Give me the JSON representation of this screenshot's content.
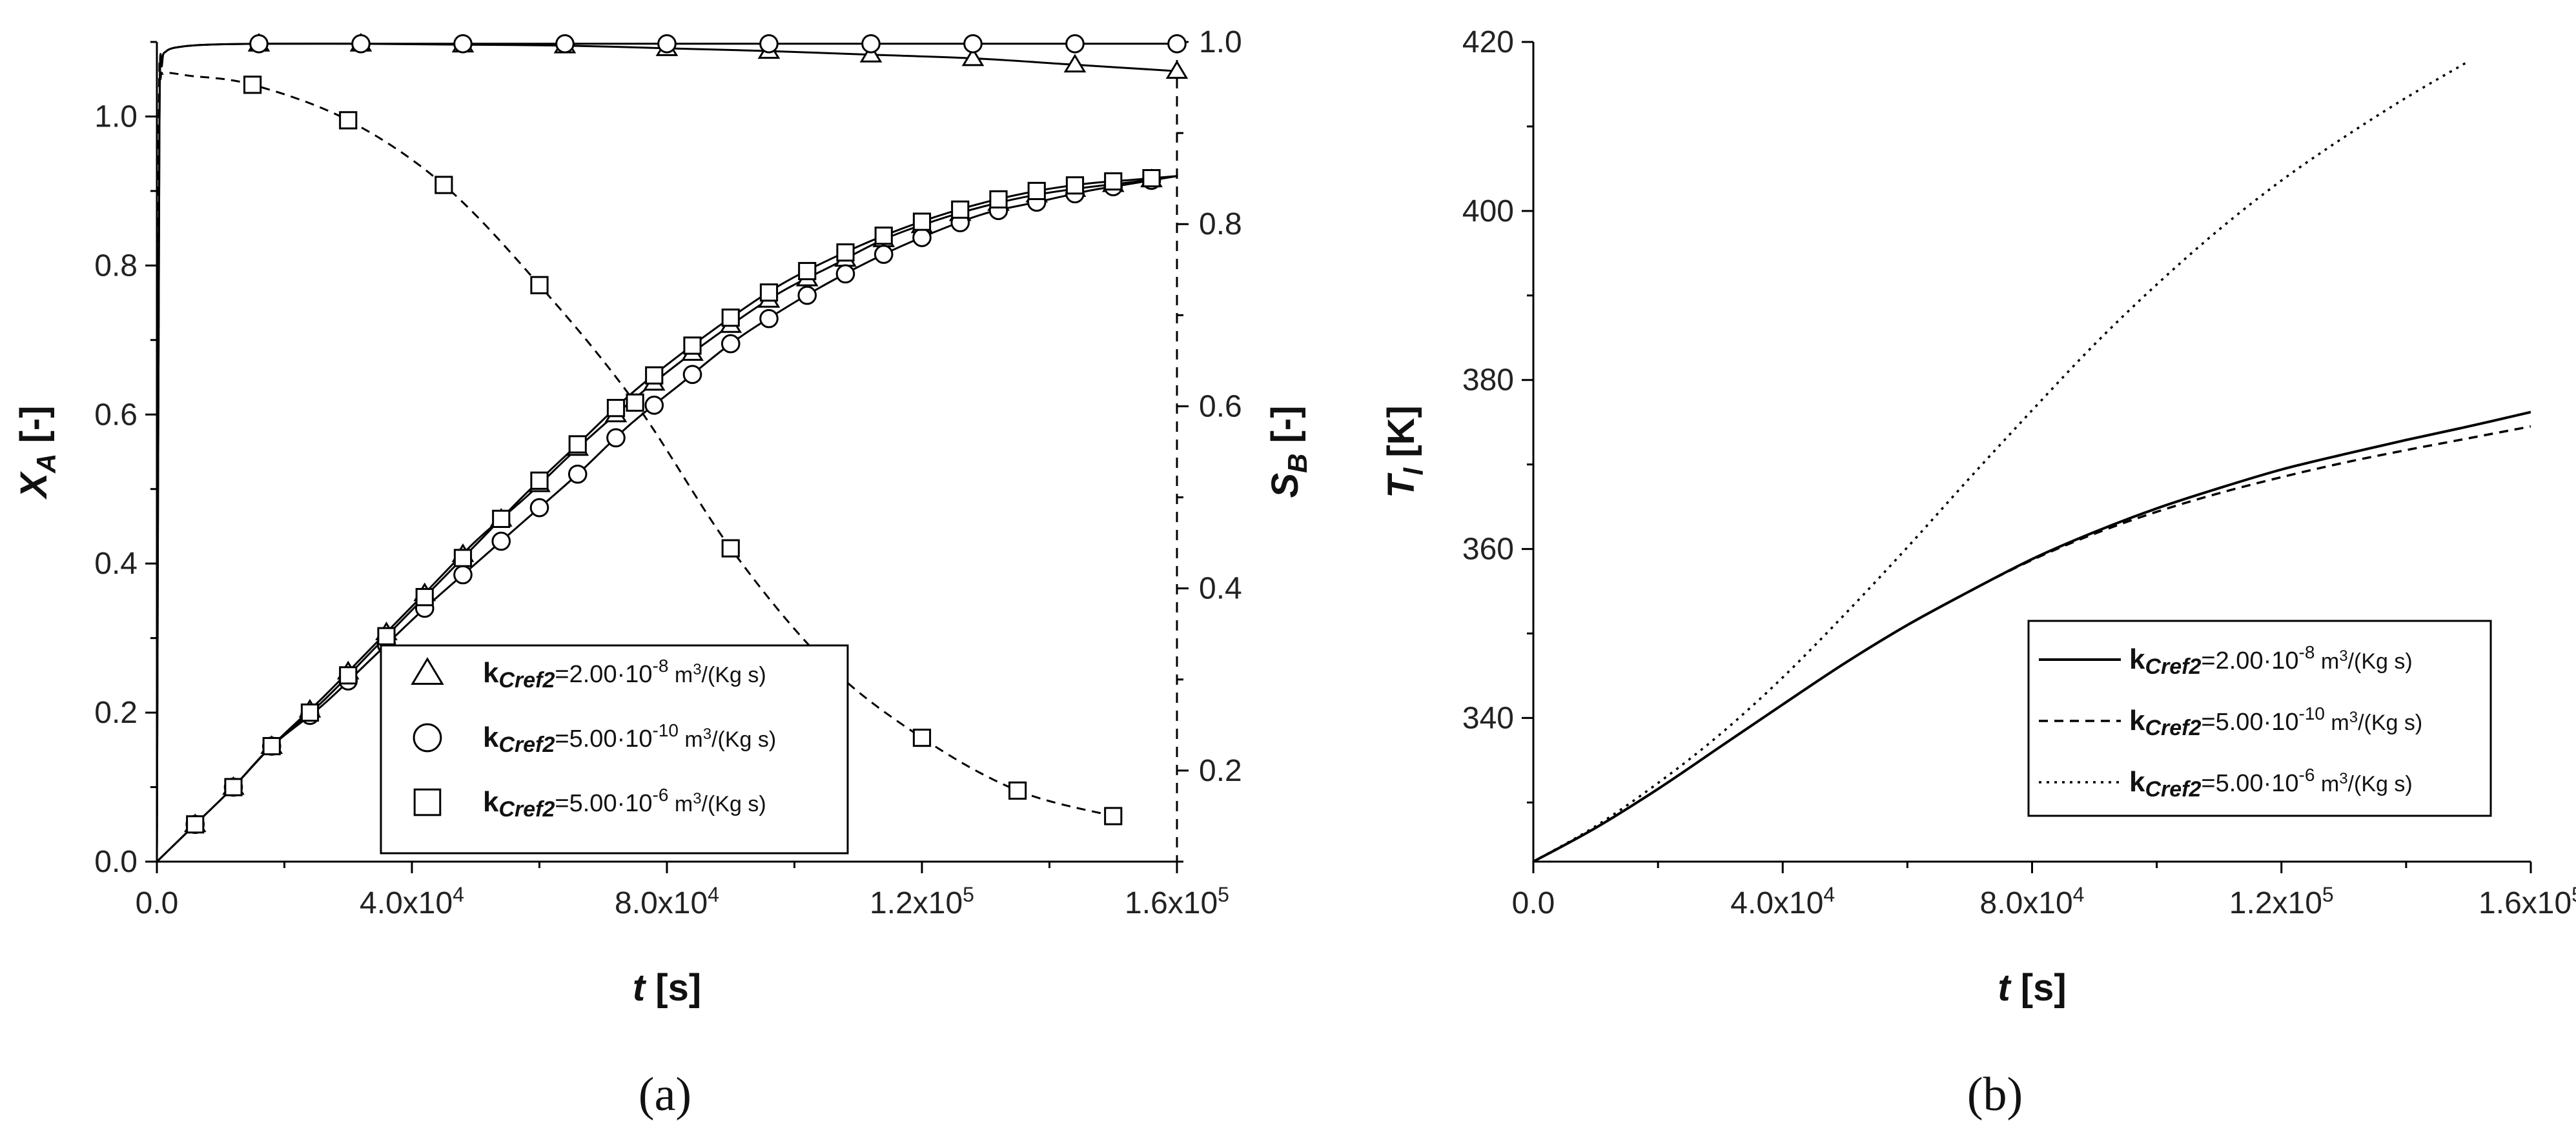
{
  "chart_data": [
    {
      "panel_label": "(a)",
      "type": "line",
      "xlabel": "t",
      "xlabel_unit": "[s]",
      "ylabel_left": "X",
      "ylabel_left_sub": "A",
      "ylabel_left_unit": "[-]",
      "ylabel_right": "S",
      "ylabel_right_sub": "B",
      "ylabel_right_unit": "[-]",
      "xlim": [
        0,
        160000
      ],
      "ylim_left": [
        0,
        1.1
      ],
      "ylim_right": [
        0.1,
        1.0
      ],
      "x_ticks": [
        {
          "value": 0,
          "mant": "0.0",
          "exp": ""
        },
        {
          "value": 40000,
          "mant": "4.0x10",
          "exp": "4"
        },
        {
          "value": 80000,
          "mant": "8.0x10",
          "exp": "4"
        },
        {
          "value": 120000,
          "mant": "1.2x10",
          "exp": "5"
        },
        {
          "value": 160000,
          "mant": "1.6x10",
          "exp": "5"
        }
      ],
      "y_left_ticks": [
        "0.0",
        "0.2",
        "0.4",
        "0.6",
        "0.8",
        "1.0"
      ],
      "y_right_ticks": [
        "0.2",
        "0.4",
        "0.6",
        "0.8",
        "1.0"
      ],
      "legend": [
        {
          "marker": "triangle",
          "prefix": "k",
          "sub": "Cref2",
          "mid": "=2.00·10",
          "sup": "-8",
          "unit_pre": " m",
          "unit_sup": "3",
          "unit_post": "/(Kg s)"
        },
        {
          "marker": "circle",
          "prefix": "k",
          "sub": "Cref2",
          "mid": "=5.00·10",
          "sup": "-10",
          "unit_pre": " m",
          "unit_sup": "3",
          "unit_post": "/(Kg s)"
        },
        {
          "marker": "square",
          "prefix": "k",
          "sub": "Cref2",
          "mid": "=5.00·10",
          "sup": "-6",
          "unit_pre": " m",
          "unit_sup": "3",
          "unit_post": "/(Kg s)"
        }
      ],
      "series": [
        {
          "marker": "triangle",
          "axis": "left",
          "style": "solid",
          "x": [
            0,
            6000,
            12000,
            18000,
            26000,
            34000,
            42000,
            50000,
            58000,
            66000,
            74000,
            82000,
            90000,
            98000,
            106000,
            114000,
            122000,
            130000,
            138000,
            146000,
            153000,
            160000
          ],
          "y": [
            0.0,
            0.05,
            0.1,
            0.155,
            0.22,
            0.29,
            0.36,
            0.43,
            0.49,
            0.555,
            0.615,
            0.67,
            0.72,
            0.765,
            0.8,
            0.835,
            0.86,
            0.88,
            0.895,
            0.905,
            0.912,
            0.92
          ]
        },
        {
          "marker": "circle",
          "axis": "left",
          "style": "solid",
          "x": [
            0,
            6000,
            12000,
            18000,
            26000,
            34000,
            42000,
            50000,
            58000,
            66000,
            74000,
            82000,
            90000,
            98000,
            106000,
            114000,
            122000,
            130000,
            138000,
            146000,
            153000,
            160000
          ],
          "y": [
            0.0,
            0.05,
            0.1,
            0.155,
            0.21,
            0.275,
            0.34,
            0.4,
            0.46,
            0.52,
            0.585,
            0.64,
            0.695,
            0.74,
            0.78,
            0.815,
            0.845,
            0.87,
            0.885,
            0.9,
            0.91,
            0.92
          ]
        },
        {
          "marker": "square",
          "axis": "left",
          "style": "solid",
          "x": [
            0,
            6000,
            12000,
            18000,
            26000,
            34000,
            42000,
            50000,
            58000,
            66000,
            74000,
            82000,
            90000,
            98000,
            106000,
            114000,
            122000,
            130000,
            138000,
            146000,
            153000,
            160000
          ],
          "y": [
            0.0,
            0.05,
            0.1,
            0.155,
            0.215,
            0.285,
            0.355,
            0.425,
            0.495,
            0.56,
            0.625,
            0.68,
            0.73,
            0.775,
            0.81,
            0.84,
            0.865,
            0.885,
            0.9,
            0.91,
            0.915,
            0.92
          ]
        },
        {
          "marker": "triangle",
          "axis": "right",
          "style": "solid",
          "x": [
            0,
            400,
            800,
            1500,
            4000,
            8000,
            16000,
            32000,
            48000,
            64000,
            80000,
            96000,
            112000,
            128000,
            144000,
            160000
          ],
          "y": [
            0.1,
            0.9,
            0.975,
            0.99,
            0.995,
            0.997,
            0.998,
            0.998,
            0.997,
            0.996,
            0.993,
            0.99,
            0.986,
            0.982,
            0.975,
            0.968
          ]
        },
        {
          "marker": "circle",
          "axis": "right",
          "style": "solid",
          "x": [
            0,
            400,
            800,
            1500,
            4000,
            8000,
            16000,
            32000,
            48000,
            64000,
            80000,
            96000,
            112000,
            128000,
            144000,
            160000
          ],
          "y": [
            0.1,
            0.9,
            0.975,
            0.99,
            0.995,
            0.997,
            0.998,
            0.998,
            0.998,
            0.998,
            0.998,
            0.998,
            0.998,
            0.998,
            0.998,
            0.998
          ]
        },
        {
          "marker": "square",
          "axis": "right",
          "style": "dashed",
          "x": [
            0,
            300,
            600,
            1000,
            2000,
            5000,
            15000,
            30000,
            45000,
            60000,
            75000,
            90000,
            105000,
            120000,
            135000,
            150000
          ],
          "y": [
            0.1,
            0.9,
            0.96,
            0.965,
            0.966,
            0.963,
            0.953,
            0.914,
            0.843,
            0.733,
            0.604,
            0.444,
            0.318,
            0.236,
            0.178,
            0.15
          ]
        }
      ]
    },
    {
      "panel_label": "(b)",
      "type": "line",
      "xlabel": "t",
      "xlabel_unit": "[s]",
      "ylabel": "T",
      "ylabel_sub": "l",
      "ylabel_unit": "[K]",
      "xlim": [
        0,
        160000
      ],
      "ylim": [
        323,
        420
      ],
      "x_ticks": [
        {
          "value": 0,
          "mant": "0.0",
          "exp": ""
        },
        {
          "value": 40000,
          "mant": "4.0x10",
          "exp": "4"
        },
        {
          "value": 80000,
          "mant": "8.0x10",
          "exp": "4"
        },
        {
          "value": 120000,
          "mant": "1.2x10",
          "exp": "5"
        },
        {
          "value": 160000,
          "mant": "1.6x10",
          "exp": "5"
        }
      ],
      "y_ticks": [
        "340",
        "360",
        "380",
        "400",
        "420"
      ],
      "legend": [
        {
          "style": "solid",
          "prefix": "k",
          "sub": "Cref2",
          "mid": "=2.00·10",
          "sup": "-8",
          "unit_pre": " m",
          "unit_sup": "3",
          "unit_post": "/(Kg s)"
        },
        {
          "style": "dashed",
          "prefix": "k",
          "sub": "Cref2",
          "mid": "=5.00·10",
          "sup": "-10",
          "unit_pre": " m",
          "unit_sup": "3",
          "unit_post": "/(Kg s)"
        },
        {
          "style": "dotted",
          "prefix": "k",
          "sub": "Cref2",
          "mid": "=5.00·10",
          "sup": "-6",
          "unit_pre": " m",
          "unit_sup": "3",
          "unit_post": "/(Kg s)"
        }
      ],
      "series": [
        {
          "style": "solid",
          "x": [
            0,
            10000,
            20000,
            30000,
            40000,
            50000,
            60000,
            70000,
            80000,
            90000,
            100000,
            110000,
            120000,
            130000,
            140000,
            150000,
            160000
          ],
          "y": [
            323,
            327,
            331.6,
            336.6,
            341.6,
            346.5,
            351,
            355,
            358.8,
            362,
            364.8,
            367.2,
            369.4,
            371.2,
            372.9,
            374.5,
            376.2
          ]
        },
        {
          "style": "dashed",
          "x": [
            0,
            10000,
            20000,
            30000,
            40000,
            50000,
            60000,
            70000,
            80000,
            90000,
            100000,
            110000,
            120000,
            130000,
            140000,
            150000,
            160000
          ],
          "y": [
            323,
            327,
            331.6,
            336.6,
            341.6,
            346.5,
            351,
            355,
            358.7,
            361.8,
            364.4,
            366.6,
            368.5,
            370.2,
            371.7,
            373.1,
            374.5
          ]
        },
        {
          "style": "dotted",
          "x": [
            0,
            10000,
            20000,
            30000,
            40000,
            50000,
            60000,
            70000,
            80000,
            90000,
            100000,
            110000,
            120000,
            130000,
            140000,
            150000
          ],
          "y": [
            323,
            327.2,
            332.3,
            338.1,
            344.8,
            352.3,
            360.2,
            368.4,
            376.4,
            384.2,
            391.3,
            397.8,
            403.6,
            408.7,
            413.4,
            417.7
          ]
        }
      ]
    }
  ]
}
